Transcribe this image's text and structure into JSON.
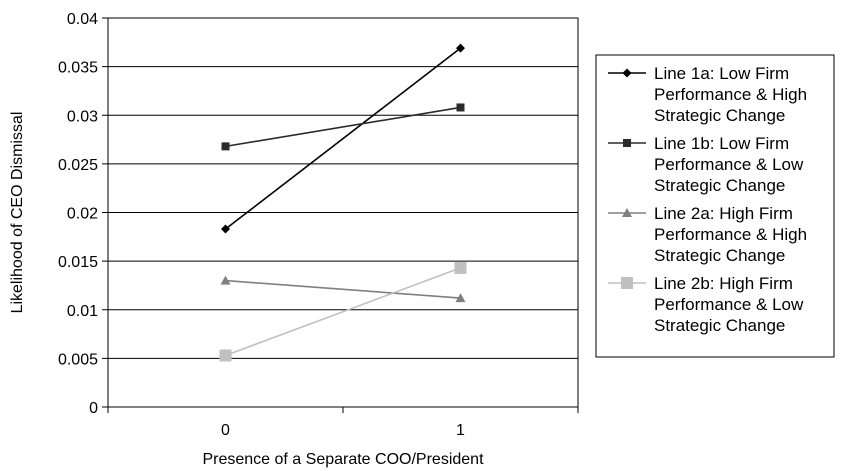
{
  "chart_data": {
    "type": "line",
    "title": "",
    "xlabel": "Presence of a Separate COO/President",
    "ylabel": "Likelihood of CEO Dismissal",
    "categories": [
      "0",
      "1"
    ],
    "ylim": [
      0,
      0.04
    ],
    "yticks": [
      "0",
      "0.005",
      "0.01",
      "0.015",
      "0.02",
      "0.025",
      "0.03",
      "0.035",
      "0.04"
    ],
    "grid": true,
    "legend_position": "right",
    "series": [
      {
        "name": "Line 1a: Low Firm Performance & High Strategic Change",
        "legend_lines": [
          "Line 1a: Low Firm",
          "Performance & High",
          "Strategic Change"
        ],
        "values": [
          0.0183,
          0.0369
        ],
        "color": "#000000",
        "marker": "diamond"
      },
      {
        "name": "Line 1b: Low Firm Performance & Low Strategic Change",
        "legend_lines": [
          "Line 1b: Low Firm",
          "Performance & Low",
          "Strategic Change"
        ],
        "values": [
          0.0268,
          0.0308
        ],
        "color": "#2b2b2b",
        "marker": "square"
      },
      {
        "name": "Line 2a: High Firm Performance & High Strategic Change",
        "legend_lines": [
          "Line 2a: High Firm",
          "Performance & High",
          "Strategic Change"
        ],
        "values": [
          0.013,
          0.0112
        ],
        "color": "#808080",
        "marker": "triangle"
      },
      {
        "name": "Line 2b: High Firm Performance & Low Strategic Change",
        "legend_lines": [
          "Line 2b: High Firm",
          "Performance & Low",
          "Strategic Change"
        ],
        "values": [
          0.0053,
          0.0143
        ],
        "color": "#c0c0c0",
        "marker": "square-large"
      }
    ]
  }
}
